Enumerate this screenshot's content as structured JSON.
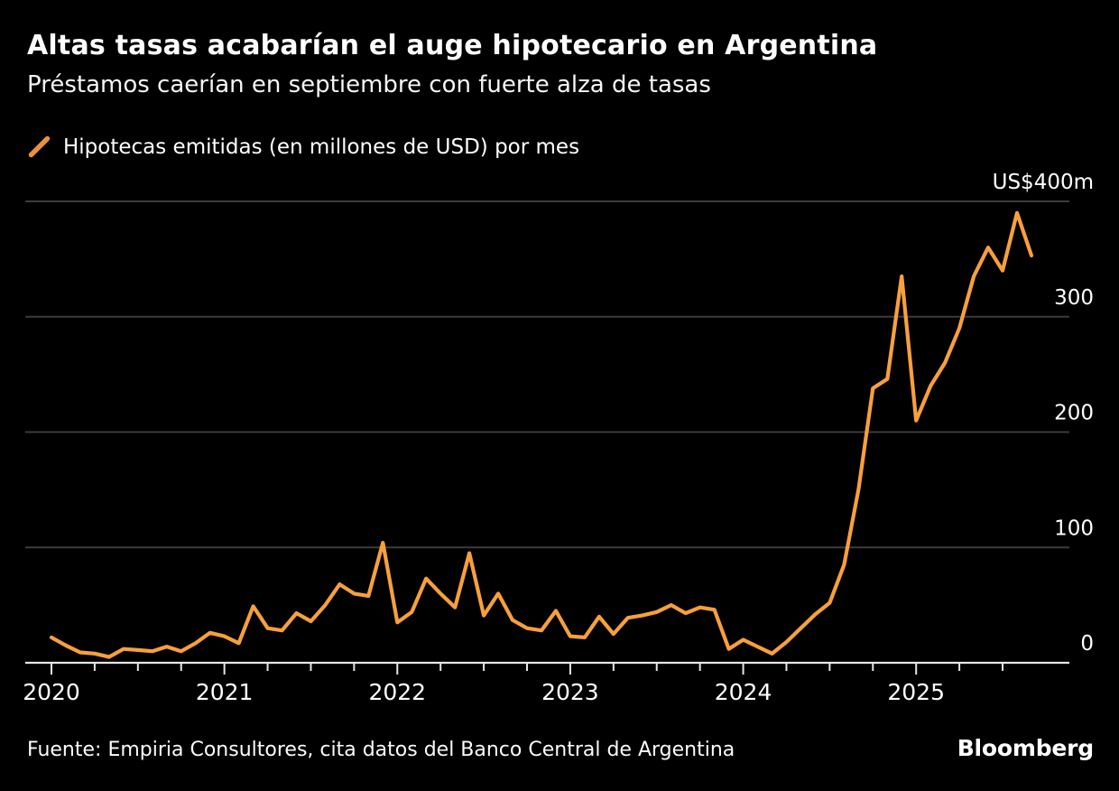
{
  "header": {
    "title": "Altas tasas acabarían el auge hipotecario en Argentina",
    "subtitle": "Préstamos caerían en septiembre con fuerte alza de tasas"
  },
  "legend": {
    "label": "Hipotecas emitidas (en millones de USD) por mes"
  },
  "footer": {
    "source": "Fuente: Empiria Consultores, cita datos del Banco Central de Argentina",
    "brand": "Bloomberg"
  },
  "colors": {
    "background": "#000000",
    "line": "#F7A03C",
    "legend_mark": "#E8923C",
    "gridline": "#3C3C3C",
    "axis": "#E6E6E6",
    "text": "#FFFFFF"
  },
  "chart_data": {
    "type": "line",
    "title": "Altas tasas acabarían el auge hipotecario en Argentina",
    "subtitle": "Préstamos caerían en septiembre con fuerte alza de tasas",
    "series_name": "Hipotecas emitidas (en millones de USD) por mes",
    "unit": "US$ millones",
    "grid": "horizontal",
    "legend_position": "top-left",
    "x": [
      "2020-01",
      "2020-02",
      "2020-03",
      "2020-04",
      "2020-05",
      "2020-06",
      "2020-07",
      "2020-08",
      "2020-09",
      "2020-10",
      "2020-11",
      "2020-12",
      "2021-01",
      "2021-02",
      "2021-03",
      "2021-04",
      "2021-05",
      "2021-06",
      "2021-07",
      "2021-08",
      "2021-09",
      "2021-10",
      "2021-11",
      "2021-12",
      "2022-01",
      "2022-02",
      "2022-03",
      "2022-04",
      "2022-05",
      "2022-06",
      "2022-07",
      "2022-08",
      "2022-09",
      "2022-10",
      "2022-11",
      "2022-12",
      "2023-01",
      "2023-02",
      "2023-03",
      "2023-04",
      "2023-05",
      "2023-06",
      "2023-07",
      "2023-08",
      "2023-09",
      "2023-10",
      "2023-11",
      "2023-12",
      "2024-01",
      "2024-02",
      "2024-03",
      "2024-04",
      "2024-05",
      "2024-06",
      "2024-07",
      "2024-08",
      "2024-09",
      "2024-10",
      "2024-11",
      "2024-12",
      "2025-01",
      "2025-02",
      "2025-03",
      "2025-04",
      "2025-05",
      "2025-06",
      "2025-07",
      "2025-08",
      "2025-09"
    ],
    "values": [
      22,
      15,
      9,
      8,
      5,
      12,
      11,
      10,
      14,
      10,
      17,
      26,
      23,
      17,
      49,
      30,
      28,
      43,
      36,
      50,
      68,
      60,
      58,
      104,
      35,
      44,
      73,
      60,
      48,
      95,
      41,
      60,
      37,
      30,
      28,
      45,
      23,
      22,
      40,
      25,
      39,
      41,
      44,
      50,
      43,
      48,
      46,
      12,
      20,
      14,
      8,
      18,
      30,
      42,
      52,
      85,
      150,
      238,
      246,
      335,
      210,
      240,
      260,
      290,
      335,
      360,
      340,
      390,
      353
    ],
    "x_axis": {
      "tick_years": [
        "2020",
        "2021",
        "2022",
        "2023",
        "2024",
        "2025"
      ],
      "minor_tick_interval_months": 3
    },
    "y_axis": {
      "side": "right",
      "range": [
        0,
        400
      ],
      "tick_values": [
        400,
        300,
        200,
        100,
        0
      ],
      "labels": [
        "US$400m",
        "300",
        "200",
        "100",
        "0"
      ]
    }
  }
}
